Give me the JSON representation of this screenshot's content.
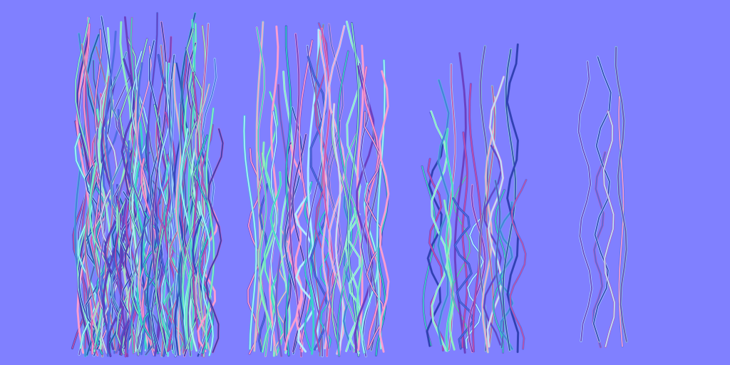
{
  "image": {
    "kind": "normal-map-texture",
    "subject": "hair-strand-cards",
    "background_color": "#8080ff",
    "strand_colors": [
      "#2f3fb0",
      "#4d6ce0",
      "#35d6c8",
      "#8ef0c0",
      "#ff9fd0",
      "#c24fa8",
      "#6a3fc0",
      "#b3f0ff"
    ],
    "clumps": [
      {
        "name": "dense-clump",
        "density": "very-dense",
        "strand_count": 110
      },
      {
        "name": "medium-clump",
        "density": "medium",
        "strand_count": 55
      },
      {
        "name": "sparse-clump",
        "density": "sparse",
        "strand_count": 26
      },
      {
        "name": "few-strands-clump",
        "density": "very-sparse",
        "strand_count": 6
      }
    ]
  }
}
